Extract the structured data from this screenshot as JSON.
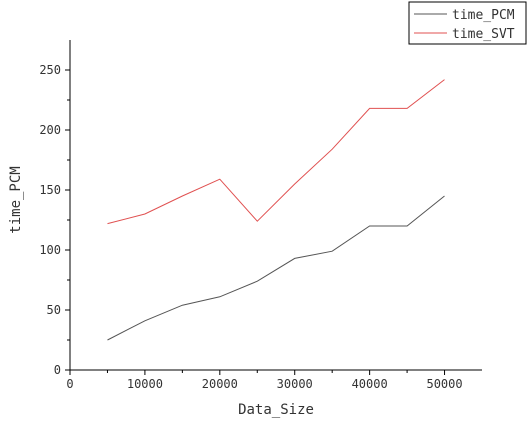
{
  "chart_data": {
    "type": "line",
    "xlabel": "Data_Size",
    "ylabel": "time_PCM",
    "xlim": [
      0,
      55000
    ],
    "ylim": [
      0,
      275
    ],
    "x_ticks": [
      0,
      10000,
      20000,
      30000,
      40000,
      50000
    ],
    "x_tick_labels": [
      "0",
      "10000",
      "20000",
      "30000",
      "40000",
      "50000"
    ],
    "y_ticks": [
      0,
      50,
      100,
      150,
      200,
      250
    ],
    "y_tick_labels": [
      "0",
      "50",
      "100",
      "150",
      "200",
      "250"
    ],
    "grid": false,
    "legend_position": "top-right",
    "series": [
      {
        "name": "time_PCM",
        "color": "#555555",
        "x": [
          5000,
          10000,
          15000,
          20000,
          25000,
          30000,
          35000,
          40000,
          45000,
          50000
        ],
        "values": [
          25,
          41,
          54,
          61,
          74,
          93,
          99,
          120,
          120,
          145
        ]
      },
      {
        "name": "time_SVT",
        "color": "#e05050",
        "x": [
          5000,
          10000,
          15000,
          20000,
          25000,
          30000,
          35000,
          40000,
          45000,
          50000
        ],
        "values": [
          122,
          130,
          145,
          159,
          124,
          155,
          184,
          218,
          218,
          242
        ]
      }
    ]
  }
}
